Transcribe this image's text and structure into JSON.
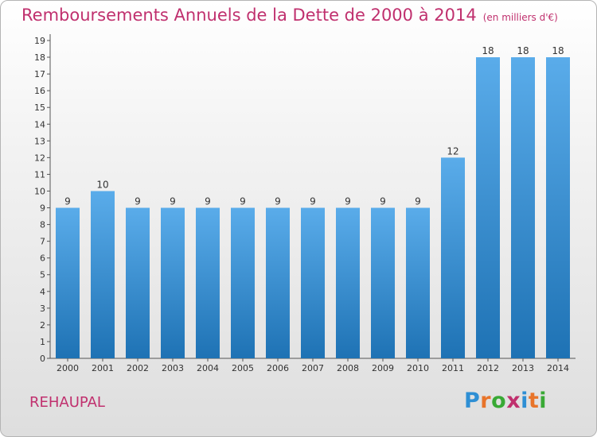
{
  "header": {
    "title": "Remboursements Annuels de la Dette de 2000 à 2014",
    "subtitle": "(en milliers d'€)"
  },
  "footer": {
    "commune": "REHAUPAL",
    "logo": "Proxiti"
  },
  "colors": {
    "title": "#c0306e",
    "bar_top": "#5aacea",
    "bar_bottom": "#1e72b4",
    "logo_letters": [
      "#2e8fd4",
      "#e8742a",
      "#39a935",
      "#c0306e",
      "#2e8fd4",
      "#e8742a",
      "#39a935"
    ]
  },
  "chart_data": {
    "type": "bar",
    "categories": [
      "2000",
      "2001",
      "2002",
      "2003",
      "2004",
      "2005",
      "2006",
      "2007",
      "2008",
      "2009",
      "2010",
      "2011",
      "2012",
      "2013",
      "2014"
    ],
    "values": [
      9,
      10,
      9,
      9,
      9,
      9,
      9,
      9,
      9,
      9,
      9,
      12,
      18,
      18,
      18
    ],
    "title": "Remboursements Annuels de la Dette de 2000 à 2014",
    "xlabel": "",
    "ylabel": "",
    "ylim": [
      0,
      19
    ],
    "yticks": [
      0,
      1,
      2,
      3,
      4,
      5,
      6,
      7,
      8,
      9,
      10,
      11,
      12,
      13,
      14,
      15,
      16,
      17,
      18,
      19
    ],
    "grid": false,
    "data_labels": true
  }
}
